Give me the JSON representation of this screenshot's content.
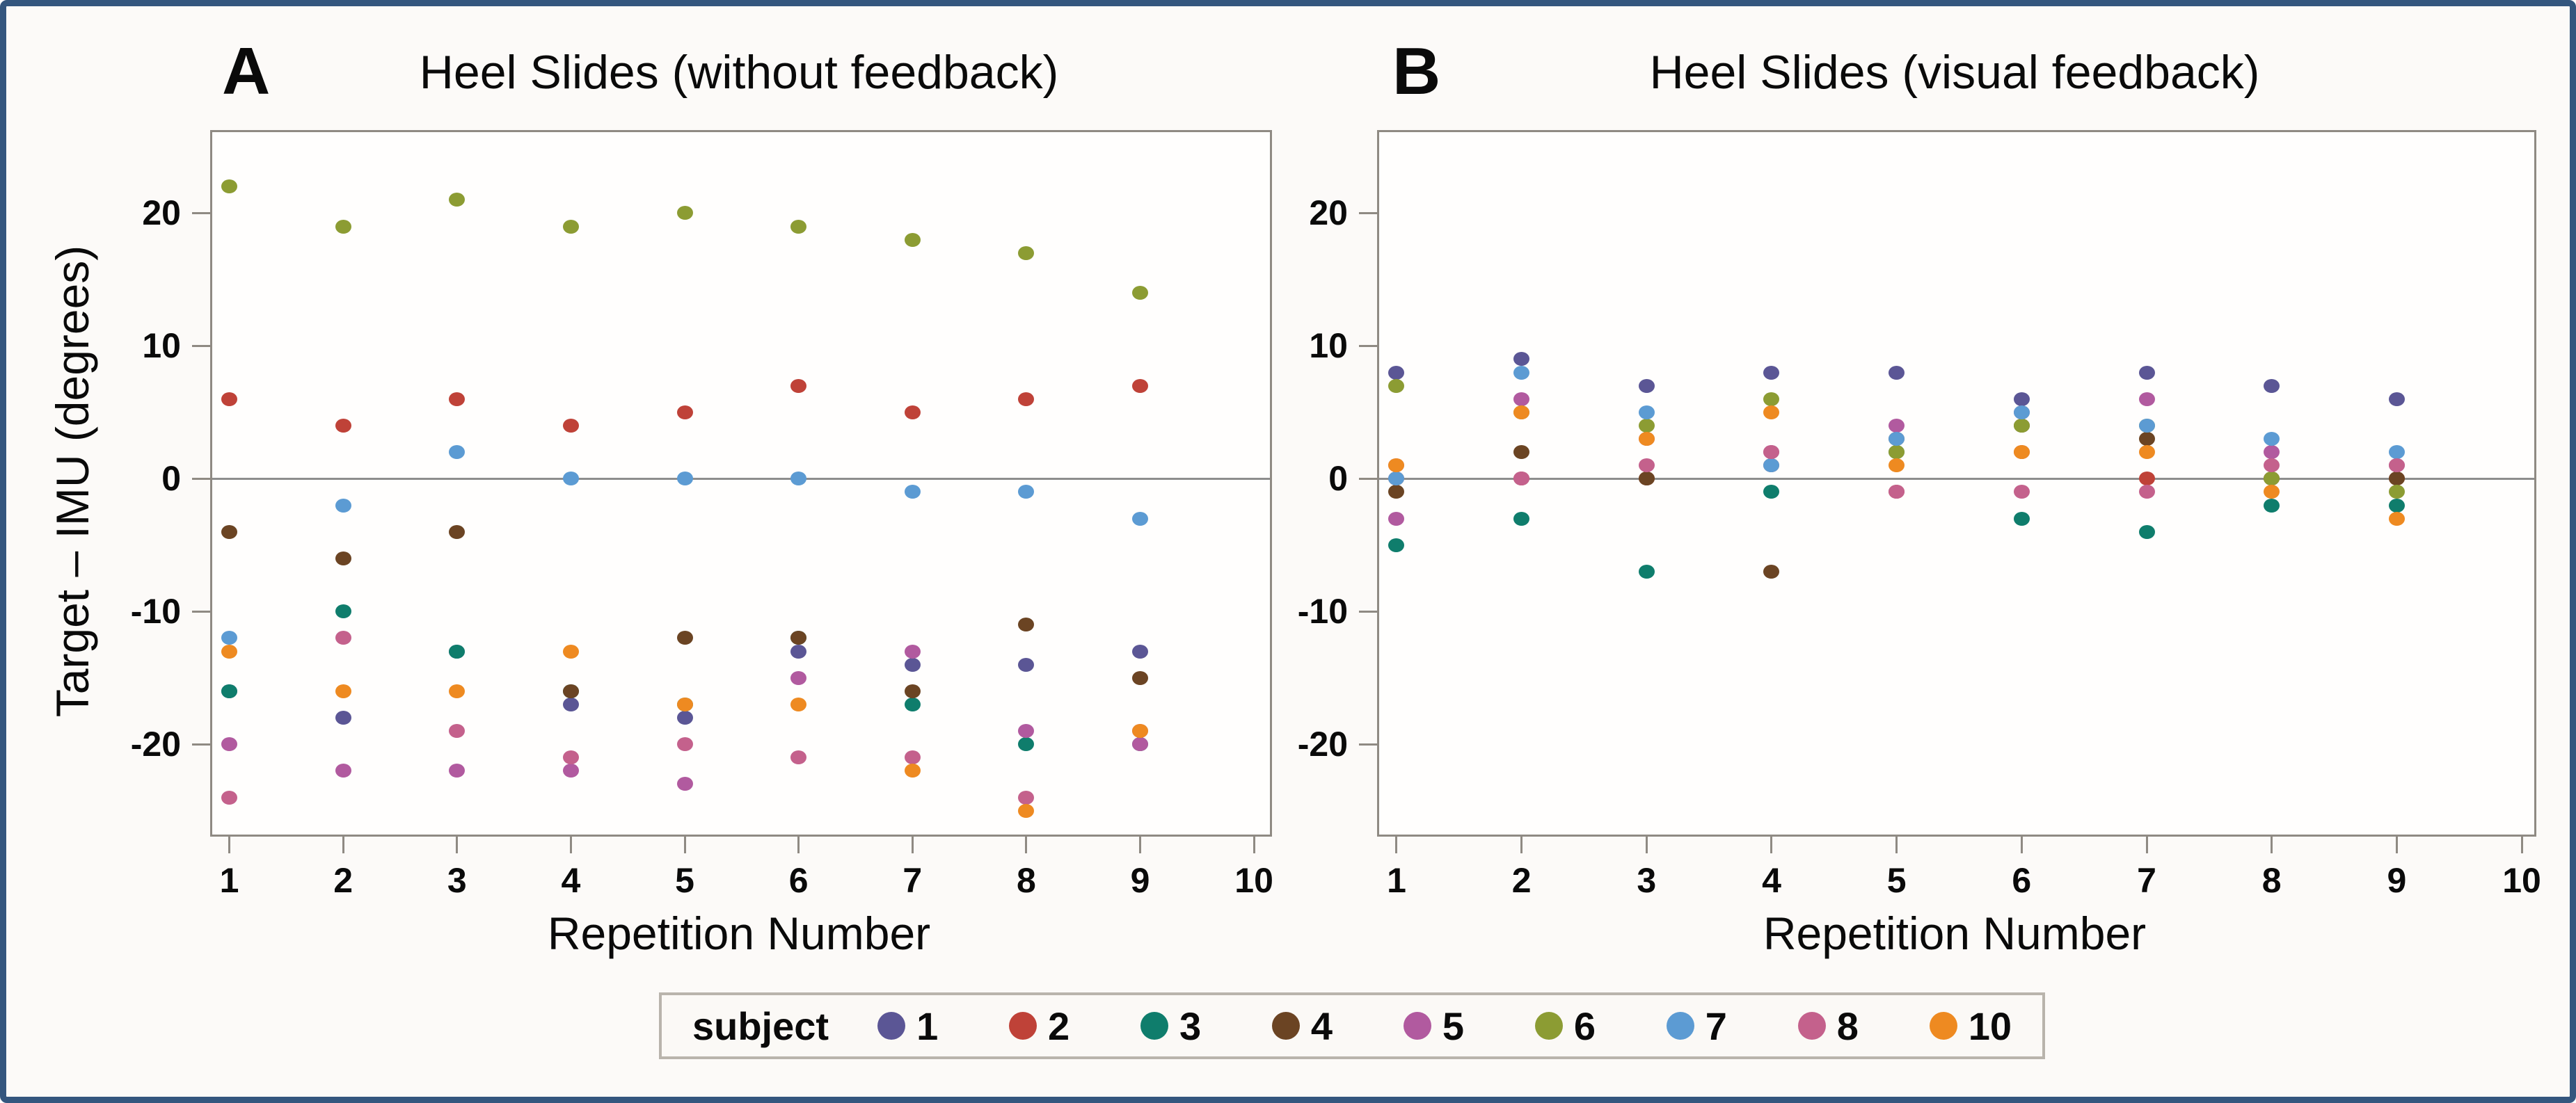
{
  "figure": {
    "background": "#fcfaf8",
    "border_color": "#34567e"
  },
  "legend": {
    "label": "subject",
    "entries": [
      {
        "label": "1",
        "color": "#5b5695"
      },
      {
        "label": "2",
        "color": "#bf4238"
      },
      {
        "label": "3",
        "color": "#0f7d6c"
      },
      {
        "label": "4",
        "color": "#6b4423"
      },
      {
        "label": "5",
        "color": "#b15a9f"
      },
      {
        "label": "6",
        "color": "#8c9c33"
      },
      {
        "label": "7",
        "color": "#5c9bd3"
      },
      {
        "label": "8",
        "color": "#c4618c"
      },
      {
        "label": "10",
        "color": "#ee8a21"
      }
    ]
  },
  "chart_data": [
    {
      "type": "scatter",
      "panel": "A",
      "letter": "A",
      "title": "Heel Slides (without feedback)",
      "xlabel": "Repetition Number",
      "ylabel": "Target – IMU (degrees)",
      "x_ticks": [
        1,
        2,
        3,
        4,
        5,
        6,
        7,
        8,
        9,
        10
      ],
      "y_ticks": [
        20,
        10,
        0,
        -10,
        -20
      ],
      "xlim": [
        0.85,
        10.14
      ],
      "ylim": [
        -26.8,
        26.1
      ],
      "ref_line": 0,
      "grid": false,
      "x_values": [
        1,
        2,
        3,
        4,
        5,
        6,
        7,
        8,
        9
      ],
      "series": [
        {
          "subject": "1",
          "values": [
            -16,
            -18,
            -13,
            -17,
            -18,
            -13,
            -14,
            -14,
            -13
          ]
        },
        {
          "subject": "2",
          "values": [
            6,
            4,
            6,
            4,
            5,
            7,
            5,
            6,
            7
          ]
        },
        {
          "subject": "3",
          "values": [
            -16,
            -10,
            -13,
            -16,
            -17,
            -12,
            -17,
            -20,
            -20
          ]
        },
        {
          "subject": "4",
          "values": [
            -4,
            -6,
            -4,
            -16,
            -12,
            -12,
            -16,
            -11,
            -15
          ]
        },
        {
          "subject": "5",
          "values": [
            -20,
            -22,
            -22,
            -22,
            -23,
            -15,
            -13,
            -19,
            -20
          ]
        },
        {
          "subject": "6",
          "values": [
            22,
            19,
            21,
            19,
            20,
            19,
            18,
            17,
            14
          ]
        },
        {
          "subject": "7",
          "values": [
            -12,
            -2,
            2,
            0,
            0,
            0,
            -1,
            -1,
            -3
          ]
        },
        {
          "subject": "8",
          "values": [
            -24,
            -12,
            -19,
            -21,
            -20,
            -21,
            -21,
            -24,
            -19
          ]
        },
        {
          "subject": "10",
          "values": [
            -13,
            -16,
            -16,
            -13,
            -17,
            -17,
            -22,
            -25,
            -19
          ]
        }
      ]
    },
    {
      "type": "scatter",
      "panel": "B",
      "letter": "B",
      "title": "Heel Slides (visual feedback)",
      "xlabel": "Repetition Number",
      "ylabel": "",
      "x_ticks": [
        1,
        2,
        3,
        4,
        5,
        6,
        7,
        8,
        9,
        10
      ],
      "y_ticks": [
        20,
        10,
        0,
        -10,
        -20
      ],
      "xlim": [
        0.861,
        10.1
      ],
      "ylim": [
        -26.8,
        26.1
      ],
      "ref_line": 0,
      "grid": false,
      "x_values": [
        1,
        2,
        3,
        4,
        5,
        6,
        7,
        8,
        9
      ],
      "series": [
        {
          "subject": "1",
          "values": [
            8,
            9,
            7,
            8,
            8,
            6,
            8,
            7,
            6
          ]
        },
        {
          "subject": "2",
          "values": [
            0,
            0,
            0,
            1,
            -1,
            2,
            0,
            0,
            0
          ]
        },
        {
          "subject": "3",
          "values": [
            -5,
            -3,
            -7,
            -1,
            2,
            -3,
            -4,
            -2,
            -2
          ]
        },
        {
          "subject": "4",
          "values": [
            -1,
            2,
            0,
            -7,
            3,
            4,
            3,
            0,
            0
          ]
        },
        {
          "subject": "5",
          "values": [
            -3,
            6,
            3,
            2,
            4,
            5,
            6,
            2,
            1
          ]
        },
        {
          "subject": "6",
          "values": [
            7,
            5,
            4,
            6,
            2,
            4,
            4,
            0,
            -1
          ]
        },
        {
          "subject": "7",
          "values": [
            0,
            8,
            5,
            1,
            3,
            5,
            4,
            3,
            2
          ]
        },
        {
          "subject": "8",
          "values": [
            1,
            0,
            1,
            2,
            -1,
            -1,
            -1,
            1,
            1
          ]
        },
        {
          "subject": "10",
          "values": [
            1,
            5,
            3,
            5,
            1,
            2,
            2,
            -1,
            -3
          ]
        }
      ]
    }
  ]
}
